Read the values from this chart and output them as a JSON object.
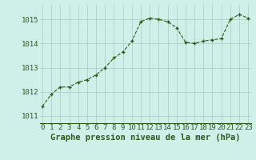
{
  "x": [
    0,
    1,
    2,
    3,
    4,
    5,
    6,
    7,
    8,
    9,
    10,
    11,
    12,
    13,
    14,
    15,
    16,
    17,
    18,
    19,
    20,
    21,
    22,
    23
  ],
  "y": [
    1011.4,
    1011.9,
    1012.2,
    1012.2,
    1012.4,
    1012.5,
    1012.7,
    1013.0,
    1013.4,
    1013.65,
    1014.1,
    1014.9,
    1015.05,
    1015.0,
    1014.9,
    1014.65,
    1014.05,
    1014.0,
    1014.1,
    1014.15,
    1014.2,
    1015.0,
    1015.2,
    1015.05
  ],
  "line_color": "#2d5a1b",
  "marker_color": "#2d5a1b",
  "bg_color": "#cef0e8",
  "grid_color": "#aed0c8",
  "xlabel": "Graphe pression niveau de la mer (hPa)",
  "xlabel_color": "#2d5a1b",
  "xlabel_fontsize": 7.5,
  "tick_color": "#2d5a1b",
  "tick_fontsize": 6.5,
  "ylim": [
    1010.7,
    1015.6
  ],
  "yticks": [
    1011,
    1012,
    1013,
    1014,
    1015
  ],
  "xticks": [
    0,
    1,
    2,
    3,
    4,
    5,
    6,
    7,
    8,
    9,
    10,
    11,
    12,
    13,
    14,
    15,
    16,
    17,
    18,
    19,
    20,
    21,
    22,
    23
  ],
  "xlim": [
    -0.3,
    23.3
  ]
}
